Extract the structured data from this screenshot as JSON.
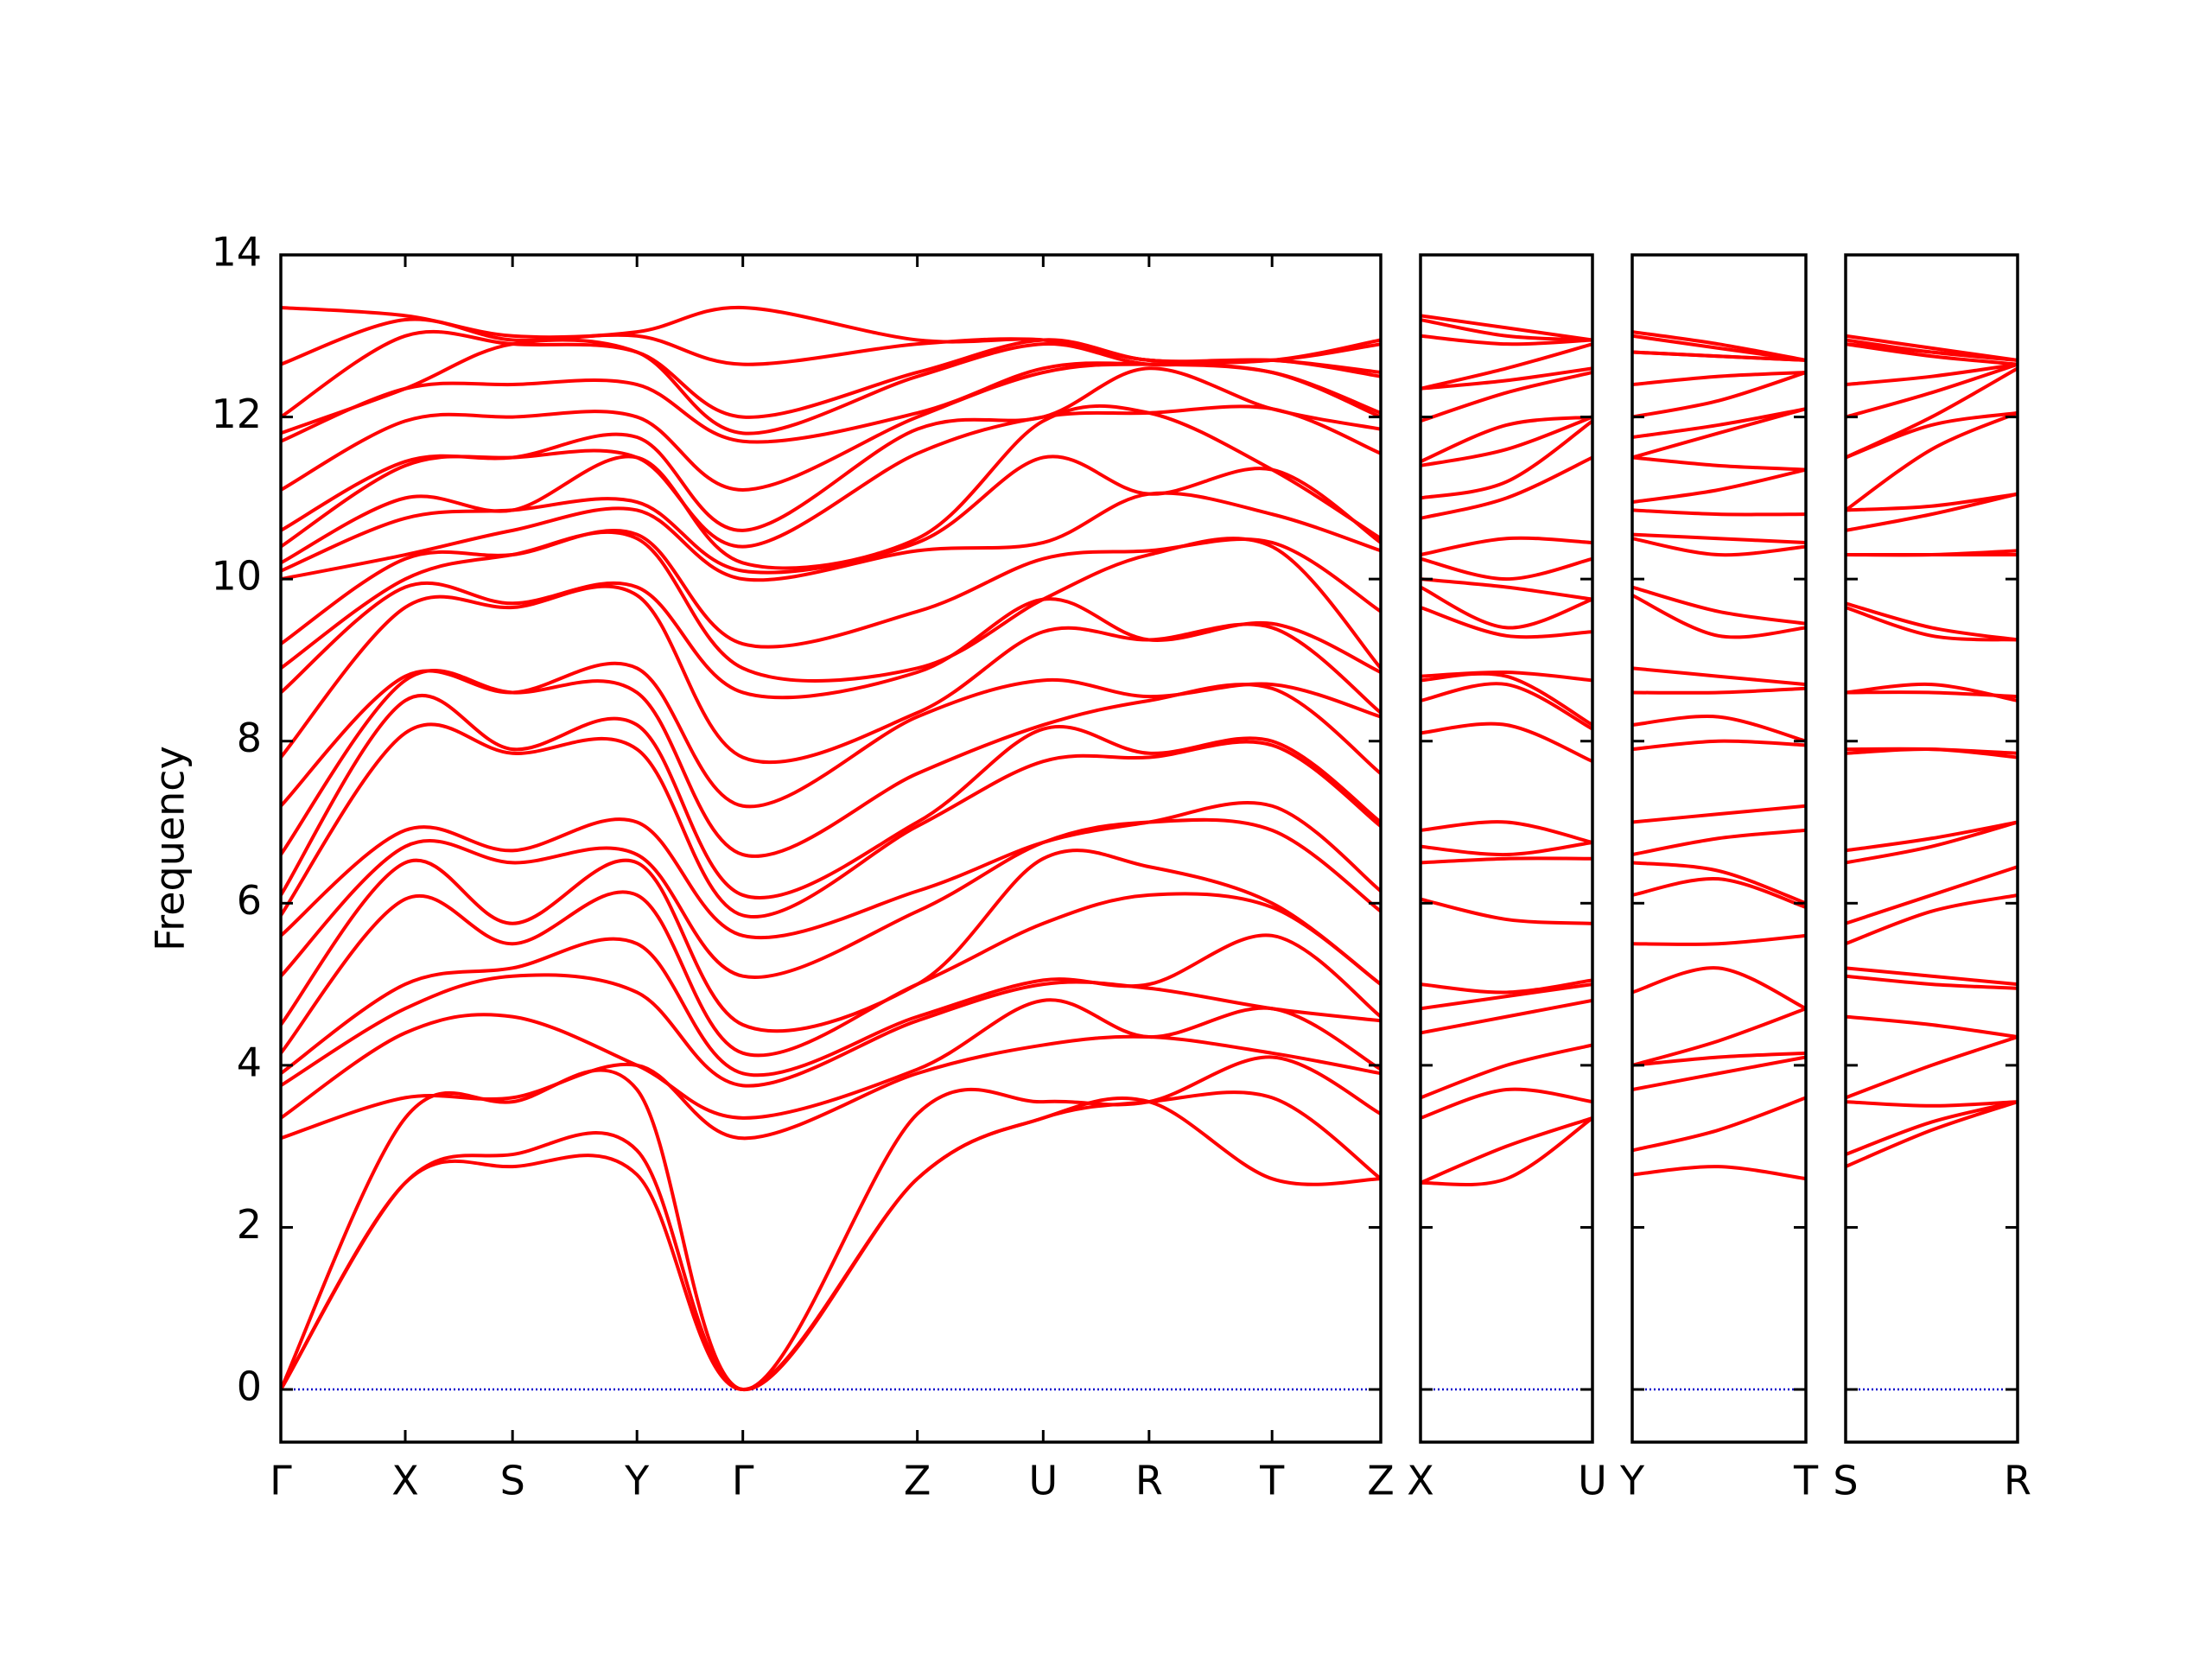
{
  "chart_data": [
    {
      "type": "line",
      "color": "#ff0000",
      "zero_line_color": "#0000cc",
      "ylabel": "Frequency",
      "ytick_labels": true,
      "xlim": [
        0,
        7.69
      ],
      "ylim": [
        -0.65,
        14
      ],
      "yticks": [
        0,
        2,
        4,
        6,
        8,
        10,
        12,
        14
      ],
      "x": [
        0,
        0.87,
        1.62,
        2.49,
        3.23,
        4.45,
        5.33,
        6.07,
        6.93,
        7.69
      ],
      "xticks": [
        {
          "value": 0,
          "label": "Γ"
        },
        {
          "value": 0.87,
          "label": "X"
        },
        {
          "value": 1.62,
          "label": "S"
        },
        {
          "value": 2.49,
          "label": "Y"
        },
        {
          "value": 3.23,
          "label": "Γ"
        },
        {
          "value": 4.45,
          "label": "Z"
        },
        {
          "value": 5.33,
          "label": "U"
        },
        {
          "value": 6.07,
          "label": "R"
        },
        {
          "value": 6.93,
          "label": "T"
        },
        {
          "value": 7.69,
          "label": "Z"
        }
      ],
      "series": [
        {
          "values": [
            0,
            2.55,
            2.75,
            2.65,
            0,
            2.6,
            3.35,
            3.55,
            2.6,
            2.6
          ]
        },
        {
          "values": [
            0,
            2.55,
            2.9,
            2.95,
            0,
            2.6,
            3.35,
            3.55,
            3.6,
            2.6
          ]
        },
        {
          "values": [
            0,
            3.35,
            3.55,
            3.7,
            0,
            3.4,
            3.55,
            3.55,
            4.1,
            3.4
          ]
        },
        {
          "values": [
            3.1,
            3.6,
            3.6,
            4.0,
            3.1,
            3.9,
            4.25,
            4.35,
            4.15,
            3.9
          ]
        },
        {
          "values": [
            3.35,
            4.4,
            4.6,
            4.0,
            3.35,
            3.95,
            4.8,
            4.35,
            4.7,
            3.95
          ]
        },
        {
          "values": [
            3.75,
            4.7,
            5.1,
            4.9,
            3.75,
            4.55,
            5.0,
            4.95,
            4.7,
            4.55
          ]
        },
        {
          "values": [
            3.9,
            5.0,
            5.2,
            5.5,
            3.9,
            4.6,
            5.05,
            5.0,
            5.6,
            4.6
          ]
        },
        {
          "values": [
            4.15,
            6.05,
            5.5,
            6.1,
            4.15,
            5.0,
            5.75,
            6.1,
            5.95,
            5.0
          ]
        },
        {
          "values": [
            4.5,
            6.5,
            5.75,
            6.5,
            4.5,
            5.0,
            6.55,
            6.45,
            6.0,
            5.0
          ]
        },
        {
          "values": [
            5.1,
            6.7,
            6.5,
            6.6,
            5.1,
            5.9,
            6.75,
            7.0,
            6.9,
            5.9
          ]
        },
        {
          "values": [
            5.6,
            6.9,
            6.65,
            7.0,
            5.6,
            6.15,
            6.75,
            7.0,
            7.2,
            6.15
          ]
        },
        {
          "values": [
            5.85,
            8.1,
            7.85,
            7.9,
            5.85,
            6.95,
            7.75,
            7.8,
            7.95,
            6.95
          ]
        },
        {
          "values": [
            6.1,
            8.5,
            7.9,
            8.2,
            6.1,
            7.0,
            8.15,
            7.85,
            8.0,
            7.0
          ]
        },
        {
          "values": [
            6.6,
            8.75,
            8.6,
            8.6,
            6.6,
            7.6,
            8.2,
            8.5,
            8.65,
            7.6
          ]
        },
        {
          "values": [
            7.2,
            8.8,
            8.6,
            8.9,
            7.2,
            8.3,
            8.75,
            8.55,
            8.7,
            8.3
          ]
        },
        {
          "values": [
            7.8,
            9.65,
            9.65,
            9.8,
            7.8,
            8.35,
            9.35,
            9.25,
            9.4,
            8.35
          ]
        },
        {
          "values": [
            8.6,
            9.9,
            9.7,
            9.9,
            8.6,
            8.85,
            9.75,
            9.25,
            9.45,
            8.85
          ]
        },
        {
          "values": [
            8.9,
            10.0,
            10.3,
            10.5,
            8.9,
            8.9,
            9.75,
            10.3,
            10.4,
            8.9
          ]
        },
        {
          "values": [
            9.2,
            10.25,
            10.3,
            10.55,
            9.2,
            9.6,
            10.25,
            10.35,
            10.45,
            9.6
          ]
        },
        {
          "values": [
            10.0,
            10.3,
            10.6,
            10.85,
            10.0,
            10.35,
            10.45,
            11.05,
            10.8,
            10.35
          ]
        },
        {
          "values": [
            10.1,
            10.75,
            10.85,
            10.95,
            10.1,
            10.45,
            11.5,
            11.05,
            11.35,
            10.45
          ]
        },
        {
          "values": [
            10.2,
            11.0,
            10.85,
            11.5,
            10.2,
            10.5,
            11.95,
            12.05,
            11.35,
            10.5
          ]
        },
        {
          "values": [
            10.4,
            11.4,
            11.5,
            11.5,
            10.4,
            11.55,
            12.0,
            12.05,
            12.1,
            11.55
          ]
        },
        {
          "values": [
            10.6,
            11.45,
            11.5,
            11.75,
            10.6,
            11.85,
            12.0,
            12.6,
            12.1,
            11.85
          ]
        },
        {
          "values": [
            11.1,
            11.95,
            12.0,
            12.0,
            11.1,
            12.0,
            12.55,
            12.65,
            12.55,
            12.0
          ]
        },
        {
          "values": [
            11.7,
            12.35,
            12.4,
            12.4,
            11.7,
            12.05,
            12.6,
            12.65,
            12.55,
            12.05
          ]
        },
        {
          "values": [
            11.8,
            12.35,
            12.9,
            12.8,
            11.8,
            12.5,
            12.9,
            12.65,
            12.7,
            12.5
          ]
        },
        {
          "values": [
            12.0,
            13.0,
            12.9,
            12.8,
            12.0,
            12.55,
            12.95,
            12.7,
            12.7,
            12.55
          ]
        },
        {
          "values": [
            12.65,
            13.2,
            12.95,
            13.0,
            12.65,
            12.9,
            12.95,
            12.7,
            12.7,
            12.9
          ]
        },
        {
          "values": [
            13.35,
            13.25,
            13.0,
            13.05,
            13.35,
            12.95,
            12.95,
            12.7,
            12.7,
            12.95
          ]
        }
      ]
    },
    {
      "type": "line",
      "color": "#ff0000",
      "zero_line_color": "#0000cc",
      "ytick_labels": false,
      "xlim": [
        0,
        1.2
      ],
      "ylim": [
        -0.65,
        14
      ],
      "yticks": [
        0,
        2,
        4,
        6,
        8,
        10,
        12,
        14
      ],
      "x": [
        0,
        0.6,
        1.2
      ],
      "xticks": [
        {
          "value": 0,
          "label": "X"
        },
        {
          "value": 1.2,
          "label": "U"
        }
      ],
      "series": [
        {
          "values": [
            2.55,
            2.6,
            3.35
          ]
        },
        {
          "values": [
            2.55,
            3.0,
            3.35
          ]
        },
        {
          "values": [
            3.35,
            3.7,
            3.55
          ]
        },
        {
          "values": [
            3.6,
            4.0,
            4.25
          ]
        },
        {
          "values": [
            4.4,
            4.6,
            4.8
          ]
        },
        {
          "values": [
            4.7,
            4.85,
            5.0
          ]
        },
        {
          "values": [
            5.0,
            4.9,
            5.05
          ]
        },
        {
          "values": [
            6.05,
            5.8,
            5.75
          ]
        },
        {
          "values": [
            6.5,
            6.55,
            6.55
          ]
        },
        {
          "values": [
            6.7,
            6.6,
            6.75
          ]
        },
        {
          "values": [
            6.9,
            7.0,
            6.75
          ]
        },
        {
          "values": [
            8.1,
            8.2,
            7.75
          ]
        },
        {
          "values": [
            8.5,
            8.7,
            8.15
          ]
        },
        {
          "values": [
            8.75,
            8.8,
            8.2
          ]
        },
        {
          "values": [
            8.8,
            8.85,
            8.75
          ]
        },
        {
          "values": [
            9.65,
            9.3,
            9.35
          ]
        },
        {
          "values": [
            9.9,
            9.4,
            9.75
          ]
        },
        {
          "values": [
            10.0,
            9.9,
            9.75
          ]
        },
        {
          "values": [
            10.25,
            10.0,
            10.25
          ]
        },
        {
          "values": [
            10.3,
            10.5,
            10.45
          ]
        },
        {
          "values": [
            10.75,
            11.0,
            11.5
          ]
        },
        {
          "values": [
            11.0,
            11.2,
            11.95
          ]
        },
        {
          "values": [
            11.4,
            11.6,
            12.0
          ]
        },
        {
          "values": [
            11.45,
            11.9,
            12.0
          ]
        },
        {
          "values": [
            11.95,
            12.3,
            12.55
          ]
        },
        {
          "values": [
            12.35,
            12.45,
            12.6
          ]
        },
        {
          "values": [
            12.35,
            12.6,
            12.9
          ]
        },
        {
          "values": [
            13.0,
            12.9,
            12.95
          ]
        },
        {
          "values": [
            13.2,
            13.0,
            12.95
          ]
        },
        {
          "values": [
            13.25,
            13.1,
            12.95
          ]
        }
      ]
    },
    {
      "type": "line",
      "color": "#ff0000",
      "zero_line_color": "#0000cc",
      "ytick_labels": false,
      "xlim": [
        0,
        1.21
      ],
      "ylim": [
        -0.65,
        14
      ],
      "yticks": [
        0,
        2,
        4,
        6,
        8,
        10,
        12,
        14
      ],
      "x": [
        0,
        0.6,
        1.21
      ],
      "xticks": [
        {
          "value": 0,
          "label": "Y"
        },
        {
          "value": 1.21,
          "label": "T"
        }
      ],
      "series": [
        {
          "values": [
            2.65,
            2.75,
            2.6
          ]
        },
        {
          "values": [
            2.95,
            3.2,
            3.6
          ]
        },
        {
          "values": [
            3.7,
            3.9,
            4.1
          ]
        },
        {
          "values": [
            4.0,
            4.1,
            4.15
          ]
        },
        {
          "values": [
            4.0,
            4.3,
            4.7
          ]
        },
        {
          "values": [
            4.9,
            5.2,
            4.7
          ]
        },
        {
          "values": [
            5.5,
            5.5,
            5.6
          ]
        },
        {
          "values": [
            6.1,
            6.3,
            5.95
          ]
        },
        {
          "values": [
            6.5,
            6.4,
            6.0
          ]
        },
        {
          "values": [
            6.6,
            6.8,
            6.9
          ]
        },
        {
          "values": [
            7.0,
            7.1,
            7.2
          ]
        },
        {
          "values": [
            7.9,
            8.0,
            7.95
          ]
        },
        {
          "values": [
            8.2,
            8.3,
            8.0
          ]
        },
        {
          "values": [
            8.6,
            8.6,
            8.65
          ]
        },
        {
          "values": [
            8.9,
            8.8,
            8.7
          ]
        },
        {
          "values": [
            9.8,
            9.3,
            9.4
          ]
        },
        {
          "values": [
            9.9,
            9.6,
            9.45
          ]
        },
        {
          "values": [
            10.5,
            10.3,
            10.4
          ]
        },
        {
          "values": [
            10.55,
            10.5,
            10.45
          ]
        },
        {
          "values": [
            10.85,
            10.8,
            10.8
          ]
        },
        {
          "values": [
            10.95,
            11.1,
            11.35
          ]
        },
        {
          "values": [
            11.5,
            11.4,
            11.35
          ]
        },
        {
          "values": [
            11.5,
            11.8,
            12.1
          ]
        },
        {
          "values": [
            11.75,
            11.9,
            12.1
          ]
        },
        {
          "values": [
            12.0,
            12.2,
            12.55
          ]
        },
        {
          "values": [
            12.4,
            12.5,
            12.55
          ]
        },
        {
          "values": [
            12.8,
            12.75,
            12.7
          ]
        },
        {
          "values": [
            12.8,
            12.75,
            12.7
          ]
        },
        {
          "values": [
            13.0,
            12.85,
            12.7
          ]
        },
        {
          "values": [
            13.05,
            12.9,
            12.7
          ]
        }
      ]
    },
    {
      "type": "line",
      "color": "#ff0000",
      "zero_line_color": "#0000cc",
      "ytick_labels": false,
      "xlim": [
        0,
        1.2
      ],
      "ylim": [
        -0.65,
        14
      ],
      "yticks": [
        0,
        2,
        4,
        6,
        8,
        10,
        12,
        14
      ],
      "x": [
        0,
        0.6,
        1.2
      ],
      "xticks": [
        {
          "value": 0,
          "label": "S"
        },
        {
          "value": 1.2,
          "label": "R"
        }
      ],
      "series": [
        {
          "values": [
            2.75,
            3.2,
            3.55
          ]
        },
        {
          "values": [
            2.9,
            3.3,
            3.55
          ]
        },
        {
          "values": [
            3.55,
            3.5,
            3.55
          ]
        },
        {
          "values": [
            3.6,
            4.0,
            4.35
          ]
        },
        {
          "values": [
            4.6,
            4.5,
            4.35
          ]
        },
        {
          "values": [
            5.1,
            5.0,
            4.95
          ]
        },
        {
          "values": [
            5.2,
            5.1,
            5.0
          ]
        },
        {
          "values": [
            5.5,
            5.9,
            6.1
          ]
        },
        {
          "values": [
            5.75,
            6.1,
            6.45
          ]
        },
        {
          "values": [
            6.5,
            6.7,
            7.0
          ]
        },
        {
          "values": [
            6.65,
            6.8,
            7.0
          ]
        },
        {
          "values": [
            7.85,
            7.9,
            7.8
          ]
        },
        {
          "values": [
            7.9,
            7.9,
            7.85
          ]
        },
        {
          "values": [
            8.6,
            8.7,
            8.5
          ]
        },
        {
          "values": [
            8.6,
            8.6,
            8.55
          ]
        },
        {
          "values": [
            9.65,
            9.3,
            9.25
          ]
        },
        {
          "values": [
            9.7,
            9.4,
            9.25
          ]
        },
        {
          "values": [
            10.3,
            10.3,
            10.3
          ]
        },
        {
          "values": [
            10.3,
            10.3,
            10.35
          ]
        },
        {
          "values": [
            10.6,
            10.8,
            11.05
          ]
        },
        {
          "values": [
            10.85,
            10.9,
            11.05
          ]
        },
        {
          "values": [
            10.85,
            11.6,
            12.05
          ]
        },
        {
          "values": [
            11.5,
            11.9,
            12.05
          ]
        },
        {
          "values": [
            11.5,
            12.0,
            12.6
          ]
        },
        {
          "values": [
            12.0,
            12.3,
            12.65
          ]
        },
        {
          "values": [
            12.4,
            12.5,
            12.65
          ]
        },
        {
          "values": [
            12.9,
            12.75,
            12.65
          ]
        },
        {
          "values": [
            12.9,
            12.8,
            12.7
          ]
        },
        {
          "values": [
            12.95,
            12.8,
            12.7
          ]
        },
        {
          "values": [
            13.0,
            12.85,
            12.7
          ]
        }
      ]
    }
  ]
}
